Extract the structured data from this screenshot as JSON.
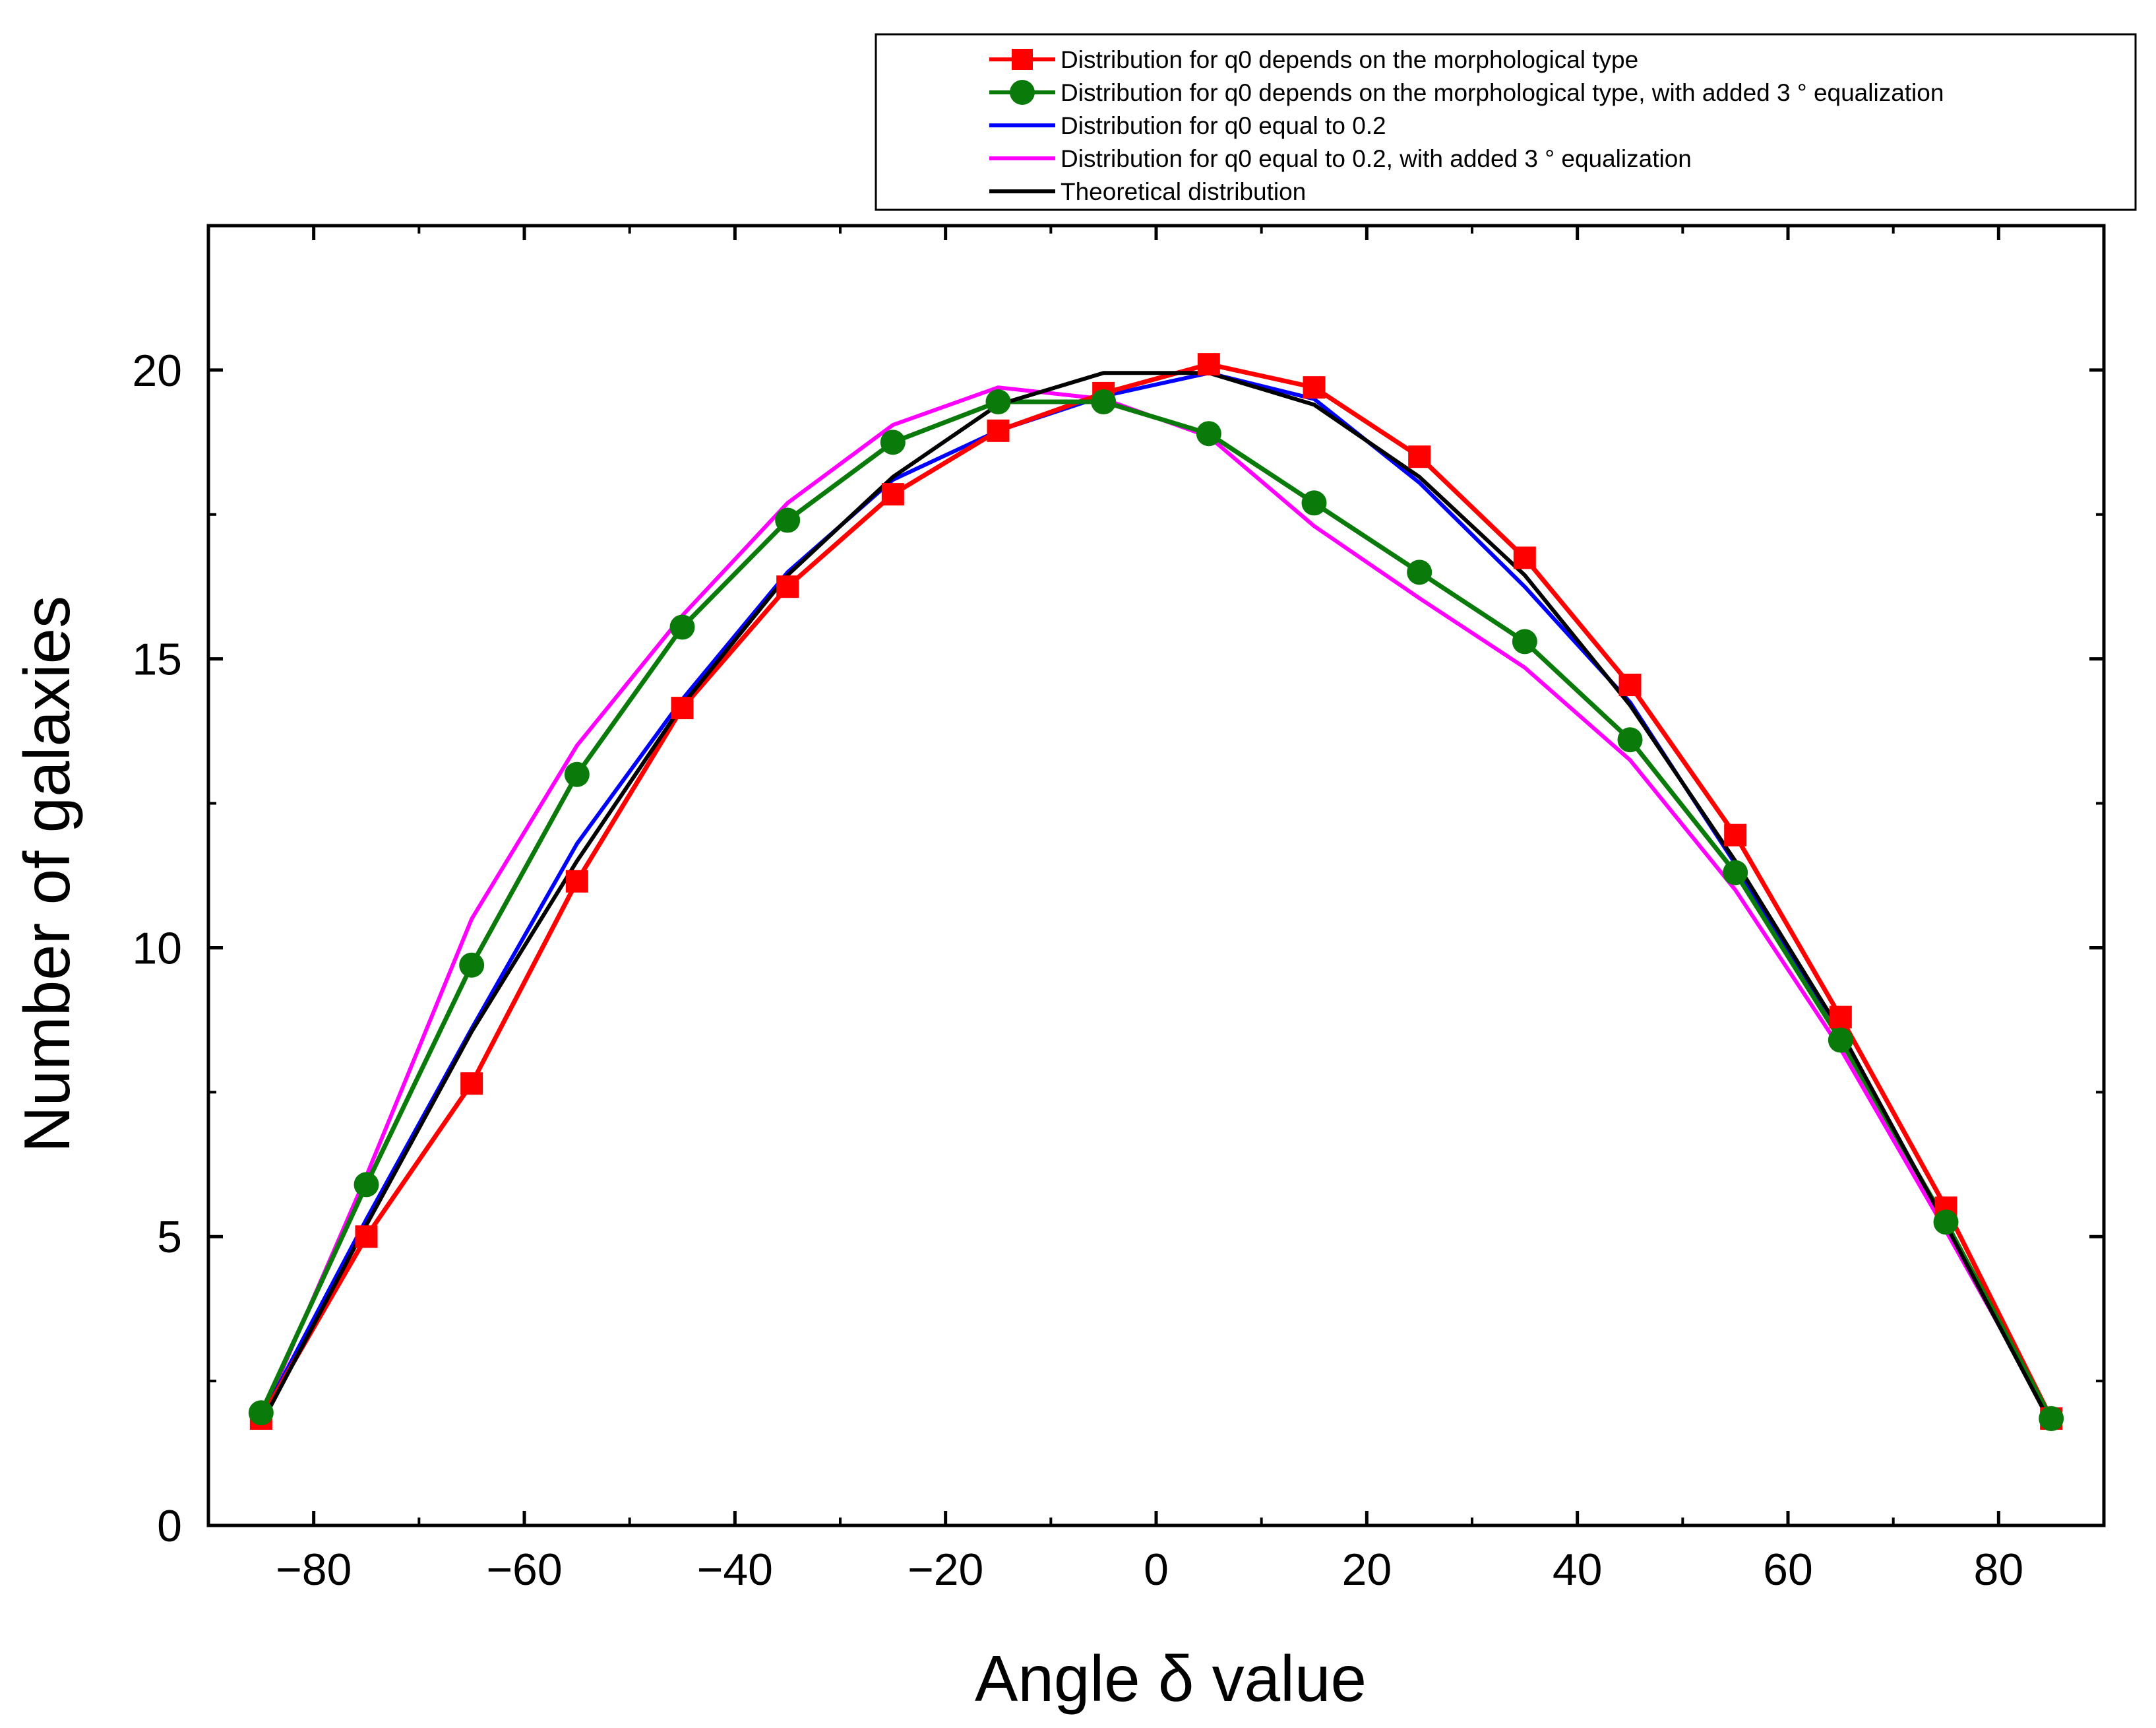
{
  "chart_data": {
    "type": "line",
    "title": "",
    "xlabel": "Angle δ value",
    "ylabel": "Number of galaxies",
    "xlim": [
      -90,
      90
    ],
    "ylim": [
      0,
      22.5
    ],
    "x_ticks": [
      -80,
      -60,
      -40,
      -20,
      0,
      20,
      40,
      60,
      80
    ],
    "x_tick_labels": [
      "−80",
      "−60",
      "−40",
      "−20",
      "0",
      "20",
      "40",
      "60",
      "80"
    ],
    "y_ticks": [
      0,
      5,
      10,
      15,
      20
    ],
    "y_tick_labels": [
      "0",
      "5",
      "10",
      "15",
      "20"
    ],
    "grid": false,
    "legend_position": "top-right, above plot",
    "x": [
      -85,
      -75,
      -65,
      -55,
      -45,
      -35,
      -25,
      -15,
      -5,
      5,
      15,
      25,
      35,
      45,
      55,
      65,
      75,
      85
    ],
    "series": [
      {
        "name": "Distribution for q0 depends on the morphological type",
        "color": "#ff0000",
        "marker": "square",
        "values": [
          1.85,
          5.0,
          7.65,
          11.15,
          14.15,
          16.25,
          17.85,
          18.95,
          19.6,
          20.1,
          19.7,
          18.5,
          16.75,
          14.55,
          11.95,
          8.8,
          5.5,
          1.85
        ]
      },
      {
        "name": "Distribution for q0 depends on the morphological type, with added 3 ° equalization",
        "color": "#0a7a0a",
        "marker": "circle",
        "values": [
          1.95,
          5.9,
          9.7,
          13.0,
          15.55,
          17.4,
          18.75,
          19.45,
          19.45,
          18.9,
          17.7,
          16.5,
          15.3,
          13.6,
          11.3,
          8.4,
          5.25,
          1.85
        ]
      },
      {
        "name": "Distribution for q0 equal to 0.2",
        "color": "#0000ff",
        "marker": "none",
        "values": [
          1.85,
          5.3,
          8.6,
          11.8,
          14.3,
          16.5,
          18.1,
          18.95,
          19.55,
          19.95,
          19.5,
          18.05,
          16.25,
          14.25,
          11.45,
          8.4,
          5.25,
          1.85
        ]
      },
      {
        "name": "Distribution for q0 equal to 0.2, with added 3 ° equalization",
        "color": "#ff00ff",
        "marker": "none",
        "values": [
          1.85,
          6.05,
          10.5,
          13.5,
          15.75,
          17.7,
          19.05,
          19.7,
          19.5,
          18.85,
          17.3,
          16.05,
          14.85,
          13.25,
          11.0,
          8.25,
          5.1,
          1.85
        ]
      },
      {
        "name": "Theoretical distribution",
        "color": "#000000",
        "marker": "none",
        "values": [
          1.75,
          5.2,
          8.55,
          11.5,
          14.2,
          16.45,
          18.15,
          19.4,
          19.95,
          19.95,
          19.4,
          18.15,
          16.45,
          14.2,
          11.5,
          8.55,
          5.2,
          1.75
        ]
      }
    ]
  }
}
